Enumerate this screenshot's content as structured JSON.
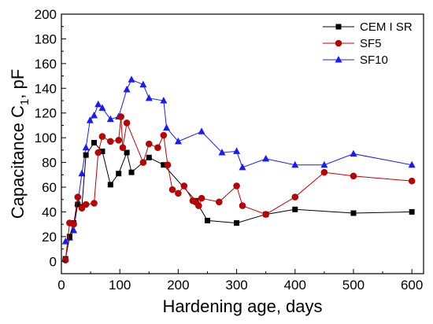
{
  "chart_data": {
    "type": "line",
    "title": "",
    "xlabel": "Hardening age, days",
    "ylabel_main": "Capacitance C",
    "ylabel_sub": "1",
    "ylabel_unit": ", pF",
    "xlim": [
      0,
      620
    ],
    "ylim": [
      -10,
      200
    ],
    "xticks": [
      0,
      100,
      200,
      300,
      400,
      500,
      600
    ],
    "yticks": [
      0,
      20,
      40,
      60,
      80,
      100,
      120,
      140,
      160,
      180,
      200
    ],
    "grid": false,
    "legend_position": "top-right",
    "series": [
      {
        "name": "CEM I SR",
        "color": "#000000",
        "marker": "square",
        "x": [
          7,
          14,
          21,
          28,
          35,
          42,
          56,
          70,
          84,
          98,
          112,
          120,
          150,
          175,
          230,
          250,
          300,
          350,
          400,
          500,
          600
        ],
        "y": [
          2,
          20,
          31,
          46,
          44,
          86,
          96,
          89,
          62,
          71,
          88,
          72,
          84,
          78,
          49,
          33,
          31,
          38,
          42,
          39,
          40
        ]
      },
      {
        "name": "SF5",
        "color": "#c00000",
        "marker": "circle",
        "x": [
          7,
          14,
          21,
          28,
          35,
          42,
          56,
          63,
          70,
          84,
          98,
          102,
          105,
          112,
          140,
          150,
          165,
          175,
          182,
          190,
          200,
          210,
          225,
          230,
          235,
          240,
          270,
          300,
          310,
          350,
          400,
          450,
          500,
          600
        ],
        "y": [
          1,
          31,
          30,
          52,
          43,
          46,
          47,
          88,
          101,
          97,
          98,
          117,
          92,
          112,
          80,
          95,
          92,
          102,
          78,
          58,
          55,
          61,
          49,
          48,
          45,
          51,
          48,
          61,
          45,
          38,
          52,
          72,
          69,
          65
        ]
      },
      {
        "name": "SF10",
        "color": "#1a1aff",
        "marker": "triangle",
        "x": [
          7,
          14,
          21,
          28,
          35,
          42,
          49,
          56,
          63,
          70,
          84,
          98,
          112,
          120,
          140,
          150,
          175,
          180,
          200,
          240,
          275,
          300,
          310,
          350,
          400,
          450,
          500,
          600
        ],
        "y": [
          16,
          19,
          25,
          47,
          71,
          92,
          114,
          118,
          127,
          124,
          115,
          117,
          139,
          147,
          143,
          132,
          130,
          108,
          97,
          105,
          88,
          89,
          76,
          83,
          78,
          78,
          87,
          78
        ]
      }
    ]
  }
}
